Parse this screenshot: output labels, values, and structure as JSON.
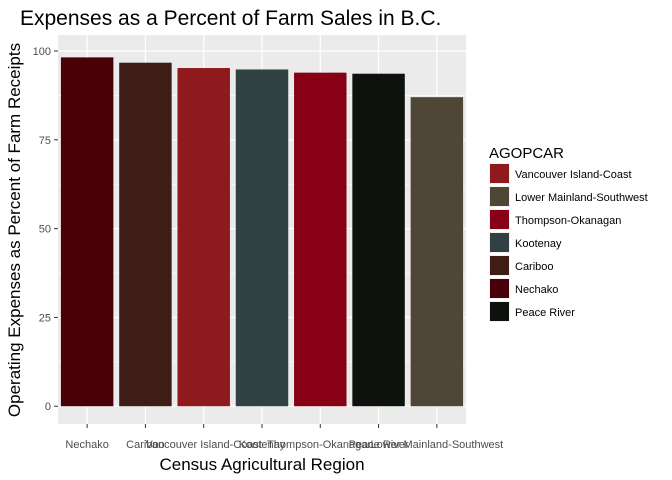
{
  "chart_data": {
    "type": "bar",
    "title": "Expenses as a Percent of Farm Sales in B.C.",
    "xlabel": "Census Agricultural Region",
    "ylabel": "Operating Expenses as Percent of Farm Receipts",
    "ylim": [
      -5,
      104.5
    ],
    "yticks": [
      0,
      25,
      50,
      75,
      100
    ],
    "grid": true,
    "legend_position": "right",
    "categories": [
      "Nechako",
      "Cariboo",
      "Vancouver Island-Coast",
      "Kootenay",
      "Thompson-Okanagan",
      "Peace River",
      "Lower Mainland-Southwest"
    ],
    "values": [
      98.2,
      96.7,
      95.2,
      94.8,
      93.9,
      93.6,
      87.0
    ],
    "bar_colors": [
      "#4a0008",
      "#3f1d17",
      "#8f1a1d",
      "#314042",
      "#880015",
      "#0d130c",
      "#504638"
    ],
    "legend": {
      "title": "AGOPCAR",
      "items": [
        {
          "label": "Vancouver Island-Coast",
          "color": "#8f1a1d"
        },
        {
          "label": "Lower Mainland-Southwest",
          "color": "#504638"
        },
        {
          "label": "Thompson-Okanagan",
          "color": "#880015"
        },
        {
          "label": "Kootenay",
          "color": "#314042"
        },
        {
          "label": "Cariboo",
          "color": "#3f1d17"
        },
        {
          "label": "Nechako",
          "color": "#4a0008"
        },
        {
          "label": "Peace River",
          "color": "#0d130c"
        }
      ]
    },
    "panel_background": "#ebebeb",
    "grid_color": "#ffffff"
  }
}
